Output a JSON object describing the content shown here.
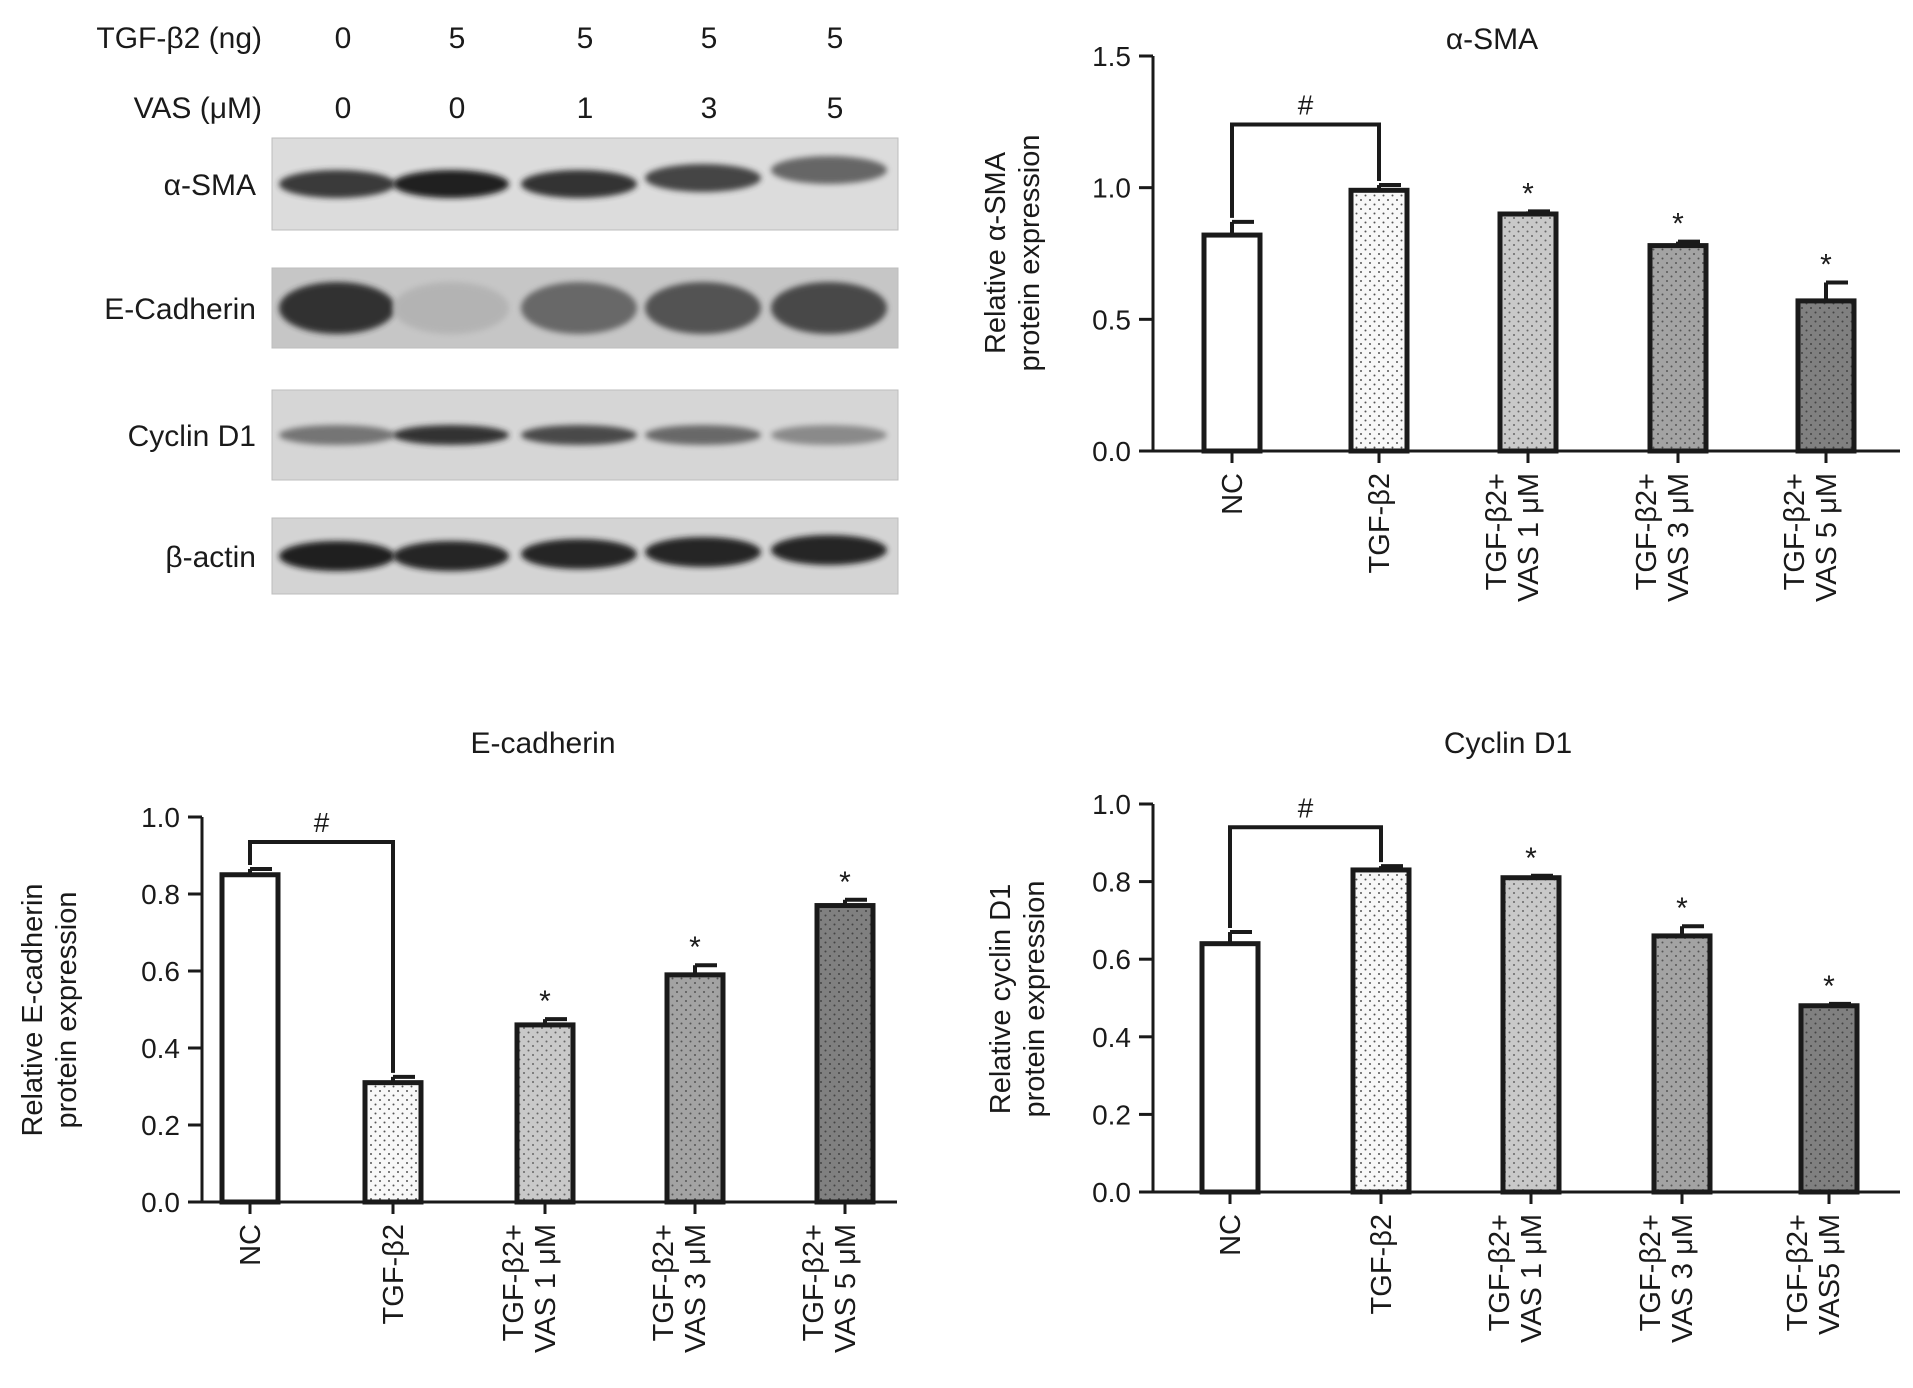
{
  "blot": {
    "condition_rows": [
      {
        "label": "TGF-β2 (ng)",
        "values": [
          "0",
          "5",
          "5",
          "5",
          "5"
        ]
      },
      {
        "label": "VAS (μM)",
        "values": [
          "0",
          "0",
          "1",
          "3",
          "5"
        ]
      }
    ],
    "bands": [
      {
        "label": "α-SMA",
        "intensity": [
          0.82,
          0.95,
          0.85,
          0.78,
          0.62
        ],
        "shift": [
          0,
          0,
          0,
          -6,
          -14
        ],
        "background": "#dcdcdc"
      },
      {
        "label": "E-Cadherin",
        "intensity": [
          0.85,
          0.25,
          0.6,
          0.7,
          0.75
        ],
        "shift": [
          0,
          0,
          0,
          0,
          0
        ],
        "background": "#c6c6c6"
      },
      {
        "label": "Cyclin D1",
        "intensity": [
          0.55,
          0.85,
          0.75,
          0.6,
          0.45
        ],
        "shift": [
          0,
          0,
          0,
          0,
          0
        ],
        "background": "#d6d6d6"
      },
      {
        "label": "β-actin",
        "intensity": [
          0.95,
          0.92,
          0.92,
          0.92,
          0.92
        ],
        "shift": [
          0,
          0,
          -2,
          -4,
          -6
        ],
        "background": "#d4d4d4"
      }
    ]
  },
  "chart_data": [
    {
      "type": "bar",
      "title": "α-SMA",
      "ylabel": [
        "Relative α-SMA",
        "protein expression"
      ],
      "categories": [
        [
          "NC"
        ],
        [
          "TGF-β2"
        ],
        [
          "TGF-β2+",
          "VAS 1 μM"
        ],
        [
          "TGF-β2+",
          "VAS 3 μM"
        ],
        [
          "TGF-β2+",
          "VAS 5 μM"
        ]
      ],
      "values": [
        0.82,
        0.99,
        0.9,
        0.78,
        0.57
      ],
      "errors": [
        0.05,
        0.02,
        0.01,
        0.015,
        0.07
      ],
      "markers": [
        "",
        "",
        "*",
        "*",
        "*"
      ],
      "bracket": {
        "from": 0,
        "to": 1,
        "label": "#",
        "y": 1.24
      },
      "ylim": [
        0,
        1.5
      ],
      "yticks": [
        "0.0",
        "0.5",
        "1.0",
        "1.5"
      ]
    },
    {
      "type": "bar",
      "title": "E-cadherin",
      "ylabel": [
        "Relative E-cadherin",
        "protein expression"
      ],
      "categories": [
        [
          "NC"
        ],
        [
          "TGF-β2"
        ],
        [
          "TGF-β2+",
          "VAS 1 μM"
        ],
        [
          "TGF-β2+",
          "VAS 3 μM"
        ],
        [
          "TGF-β2+",
          "VAS 5 μM"
        ]
      ],
      "values": [
        0.85,
        0.31,
        0.46,
        0.59,
        0.77
      ],
      "errors": [
        0.015,
        0.015,
        0.015,
        0.025,
        0.015
      ],
      "markers": [
        "",
        "",
        "*",
        "*",
        "*"
      ],
      "bracket": {
        "from": 0,
        "to": 1,
        "label": "#",
        "y": 0.935
      },
      "ylim": [
        0,
        1.0
      ],
      "yticks": [
        "0.0",
        "0.2",
        "0.4",
        "0.6",
        "0.8",
        "1.0"
      ]
    },
    {
      "type": "bar",
      "title": "Cyclin D1",
      "ylabel": [
        "Relative cyclin D1",
        "protein expression"
      ],
      "categories": [
        [
          "NC"
        ],
        [
          "TGF-β2"
        ],
        [
          "TGF-β2+",
          "VAS 1 μM"
        ],
        [
          "TGF-β2+",
          "VAS 3 μM"
        ],
        [
          "TGF-β2+",
          "VAS5 μM"
        ]
      ],
      "values": [
        0.64,
        0.83,
        0.81,
        0.66,
        0.48
      ],
      "errors": [
        0.03,
        0.01,
        0.005,
        0.025,
        0.005
      ],
      "markers": [
        "",
        "",
        "*",
        "*",
        "*"
      ],
      "bracket": {
        "from": 0,
        "to": 1,
        "label": "#",
        "y": 0.94
      },
      "ylim": [
        0,
        1.0
      ],
      "yticks": [
        "0.0",
        "0.2",
        "0.4",
        "0.6",
        "0.8",
        "1.0"
      ]
    }
  ],
  "bar_fills": [
    "#ffffff",
    "#f6f6f6",
    "#c8c8c8",
    "#a2a2a2",
    "#7e7e7e"
  ]
}
